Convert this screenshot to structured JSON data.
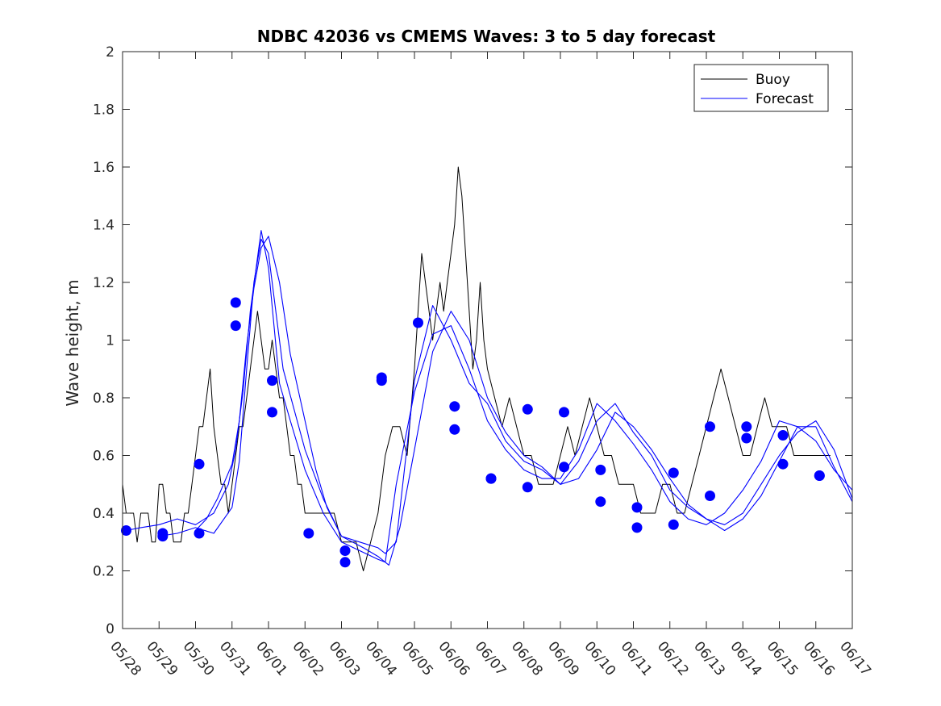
{
  "chart_data": {
    "type": "line",
    "title": "NDBC 42036 vs CMEMS Waves: 3 to 5 day forecast",
    "xlabel": "",
    "ylabel": "Wave height, m",
    "xlim": [
      "05/28",
      "06/17"
    ],
    "ylim": [
      0,
      2
    ],
    "x_tick_labels": [
      "05/28",
      "05/29",
      "05/30",
      "05/31",
      "06/01",
      "06/02",
      "06/03",
      "06/04",
      "06/05",
      "06/06",
      "06/07",
      "06/08",
      "06/09",
      "06/10",
      "06/11",
      "06/12",
      "06/13",
      "06/14",
      "06/15",
      "06/16",
      "06/17"
    ],
    "y_tick_values": [
      0,
      0.2,
      0.4,
      0.6,
      0.8,
      1,
      1.2,
      1.4,
      1.6,
      1.8,
      2
    ],
    "y_tick_labels": [
      "0",
      "0.2",
      "0.4",
      "0.6",
      "0.8",
      "1",
      "1.2",
      "1.4",
      "1.6",
      "1.8",
      "2"
    ],
    "grid": false,
    "legend_position": "top-right",
    "legend": [
      "Buoy",
      "Forecast"
    ],
    "colors": {
      "buoy": "#000000",
      "forecast": "#0000ff",
      "markers": "#0000ff",
      "axes": "#262626"
    },
    "x_unit_note": "x values are days after 05/28 00:00",
    "series": [
      {
        "name": "Buoy",
        "color": "#000000",
        "x": [
          0,
          0.1,
          0.2,
          0.3,
          0.4,
          0.5,
          0.6,
          0.7,
          0.8,
          0.9,
          1.0,
          1.1,
          1.2,
          1.3,
          1.4,
          1.5,
          1.6,
          1.7,
          1.8,
          1.9,
          2.0,
          2.1,
          2.2,
          2.3,
          2.4,
          2.5,
          2.6,
          2.7,
          2.8,
          2.9,
          3.0,
          3.1,
          3.2,
          3.3,
          3.4,
          3.5,
          3.6,
          3.7,
          3.8,
          3.9,
          4.0,
          4.1,
          4.2,
          4.3,
          4.4,
          4.5,
          4.6,
          4.7,
          4.8,
          4.9,
          5.0,
          5.2,
          5.4,
          5.6,
          5.8,
          6.0,
          6.2,
          6.4,
          6.6,
          6.8,
          7.0,
          7.2,
          7.4,
          7.6,
          7.8,
          8.0,
          8.1,
          8.2,
          8.3,
          8.4,
          8.5,
          8.6,
          8.7,
          8.8,
          8.9,
          9.0,
          9.1,
          9.2,
          9.3,
          9.4,
          9.5,
          9.6,
          9.7,
          9.8,
          9.9,
          10.0,
          10.2,
          10.4,
          10.6,
          10.8,
          11.0,
          11.2,
          11.4,
          11.6,
          11.8,
          12.0,
          12.2,
          12.4,
          12.6,
          12.8,
          13.0,
          13.2,
          13.4,
          13.6,
          13.8,
          14.0,
          14.2,
          14.4,
          14.6,
          14.8,
          15.0,
          15.2,
          15.4,
          15.6,
          15.8,
          16.0,
          16.2,
          16.4,
          16.6,
          16.8,
          17.0,
          17.2,
          17.4,
          17.6,
          17.8,
          18.0,
          18.2,
          18.4,
          18.6,
          18.8,
          19.0,
          19.2,
          19.4
        ],
        "values": [
          0.5,
          0.4,
          0.4,
          0.4,
          0.3,
          0.4,
          0.4,
          0.4,
          0.3,
          0.3,
          0.5,
          0.5,
          0.4,
          0.4,
          0.3,
          0.3,
          0.3,
          0.4,
          0.4,
          0.5,
          0.6,
          0.7,
          0.7,
          0.8,
          0.9,
          0.7,
          0.6,
          0.5,
          0.5,
          0.4,
          0.5,
          0.6,
          0.7,
          0.7,
          0.8,
          0.9,
          1.0,
          1.1,
          1.0,
          0.9,
          0.9,
          1.0,
          0.9,
          0.8,
          0.8,
          0.7,
          0.6,
          0.6,
          0.5,
          0.5,
          0.4,
          0.4,
          0.4,
          0.4,
          0.4,
          0.3,
          0.3,
          0.3,
          0.2,
          0.3,
          0.4,
          0.6,
          0.7,
          0.7,
          0.6,
          0.9,
          1.1,
          1.3,
          1.2,
          1.1,
          1.0,
          1.1,
          1.2,
          1.1,
          1.2,
          1.3,
          1.4,
          1.6,
          1.5,
          1.3,
          1.1,
          0.9,
          1.0,
          1.2,
          1.0,
          0.9,
          0.8,
          0.7,
          0.8,
          0.7,
          0.6,
          0.6,
          0.5,
          0.5,
          0.5,
          0.6,
          0.7,
          0.6,
          0.7,
          0.8,
          0.7,
          0.6,
          0.6,
          0.5,
          0.5,
          0.5,
          0.4,
          0.4,
          0.4,
          0.5,
          0.5,
          0.4,
          0.4,
          0.5,
          0.6,
          0.7,
          0.8,
          0.9,
          0.8,
          0.7,
          0.6,
          0.6,
          0.7,
          0.8,
          0.7,
          0.7,
          0.7,
          0.6,
          0.6,
          0.6,
          0.6,
          0.6,
          0.6
        ]
      },
      {
        "name": "Forecast",
        "color": "#0000ff",
        "x": [
          0.1,
          0.5,
          1.0,
          1.5,
          2.0,
          2.5,
          2.9,
          3.1,
          3.3,
          3.5,
          3.8,
          4.0,
          4.3,
          4.6,
          5.0,
          5.5,
          6.0,
          6.5,
          7.0,
          7.2,
          7.5,
          8.0,
          8.5,
          9.0,
          9.5,
          10.0,
          10.5,
          11.0,
          11.5,
          12.0,
          12.5,
          13.0,
          13.5,
          14.0,
          14.5,
          15.0,
          15.5,
          16.0,
          16.5,
          17.0,
          17.5,
          18.0,
          18.5,
          19.0,
          19.5,
          20.0
        ],
        "values": [
          0.34,
          0.35,
          0.36,
          0.38,
          0.36,
          0.4,
          0.5,
          0.62,
          0.82,
          1.1,
          1.38,
          1.25,
          0.85,
          0.72,
          0.55,
          0.4,
          0.3,
          0.27,
          0.24,
          0.23,
          0.5,
          0.82,
          1.02,
          1.05,
          0.9,
          0.72,
          0.62,
          0.55,
          0.52,
          0.52,
          0.62,
          0.78,
          0.72,
          0.64,
          0.55,
          0.44,
          0.38,
          0.36,
          0.4,
          0.48,
          0.58,
          0.72,
          0.7,
          0.65,
          0.55,
          0.48
        ]
      },
      {
        "name": "Forecast",
        "color": "#0000ff",
        "x": [
          1.0,
          1.5,
          2.0,
          2.5,
          3.0,
          3.2,
          3.4,
          3.6,
          3.8,
          4.0,
          4.4,
          5.0,
          5.5,
          6.0,
          6.5,
          7.0,
          7.2,
          7.5,
          8.0,
          8.5,
          9.0,
          9.5,
          10.0,
          10.5,
          11.0,
          11.5,
          12.0,
          12.5,
          13.0,
          13.5,
          14.0,
          14.5,
          15.0,
          15.5,
          16.0,
          16.5,
          17.0,
          17.5,
          18.0,
          18.5,
          19.0,
          19.5,
          20.0
        ],
        "values": [
          0.32,
          0.33,
          0.35,
          0.33,
          0.42,
          0.58,
          0.9,
          1.2,
          1.35,
          1.3,
          0.9,
          0.62,
          0.45,
          0.32,
          0.3,
          0.28,
          0.26,
          0.3,
          0.86,
          1.12,
          1.0,
          0.85,
          0.78,
          0.65,
          0.58,
          0.55,
          0.5,
          0.58,
          0.72,
          0.78,
          0.68,
          0.6,
          0.48,
          0.42,
          0.38,
          0.36,
          0.4,
          0.5,
          0.6,
          0.68,
          0.72,
          0.62,
          0.45
        ]
      },
      {
        "name": "Forecast",
        "color": "#0000ff",
        "x": [
          2.0,
          2.3,
          2.6,
          3.0,
          3.2,
          3.4,
          3.6,
          3.8,
          4.0,
          4.3,
          4.6,
          5.0,
          5.3,
          5.6,
          6.0,
          6.3,
          6.6,
          7.0,
          7.3,
          7.6,
          8.0,
          8.5,
          9.0,
          9.5,
          10.0,
          10.5,
          11.0,
          11.5,
          12.0,
          12.5,
          13.0,
          13.5,
          14.0,
          14.5,
          15.0,
          15.5,
          16.0,
          16.5,
          17.0,
          17.5,
          18.0,
          18.5,
          19.0,
          19.5,
          20.0
        ],
        "values": [
          0.34,
          0.38,
          0.45,
          0.57,
          0.72,
          0.98,
          1.18,
          1.32,
          1.36,
          1.2,
          0.95,
          0.72,
          0.55,
          0.42,
          0.32,
          0.3,
          0.28,
          0.25,
          0.22,
          0.35,
          0.62,
          0.96,
          1.1,
          1.0,
          0.8,
          0.68,
          0.6,
          0.56,
          0.5,
          0.52,
          0.62,
          0.75,
          0.7,
          0.62,
          0.52,
          0.43,
          0.38,
          0.34,
          0.38,
          0.46,
          0.58,
          0.7,
          0.7,
          0.56,
          0.44
        ]
      }
    ],
    "markers": {
      "x": [
        0.1,
        1.1,
        1.1,
        2.1,
        2.1,
        3.1,
        3.1,
        4.1,
        4.1,
        5.1,
        6.1,
        6.1,
        7.1,
        7.1,
        8.1,
        9.1,
        9.1,
        10.1,
        10.1,
        11.1,
        11.1,
        12.1,
        12.1,
        13.1,
        13.1,
        14.1,
        14.1,
        15.1,
        15.1,
        16.1,
        16.1,
        17.1,
        17.1,
        18.1,
        18.1,
        19.1,
        19.1
      ],
      "values": [
        0.34,
        0.32,
        0.33,
        0.57,
        0.33,
        1.13,
        1.05,
        0.86,
        0.75,
        0.33,
        0.27,
        0.23,
        0.87,
        0.86,
        1.06,
        0.77,
        0.69,
        0.52,
        0.52,
        0.49,
        0.76,
        0.75,
        0.56,
        0.55,
        0.44,
        0.42,
        0.35,
        0.36,
        0.54,
        0.46,
        0.7,
        0.66,
        0.7,
        0.67,
        0.57,
        0.53,
        0.53
      ]
    }
  }
}
